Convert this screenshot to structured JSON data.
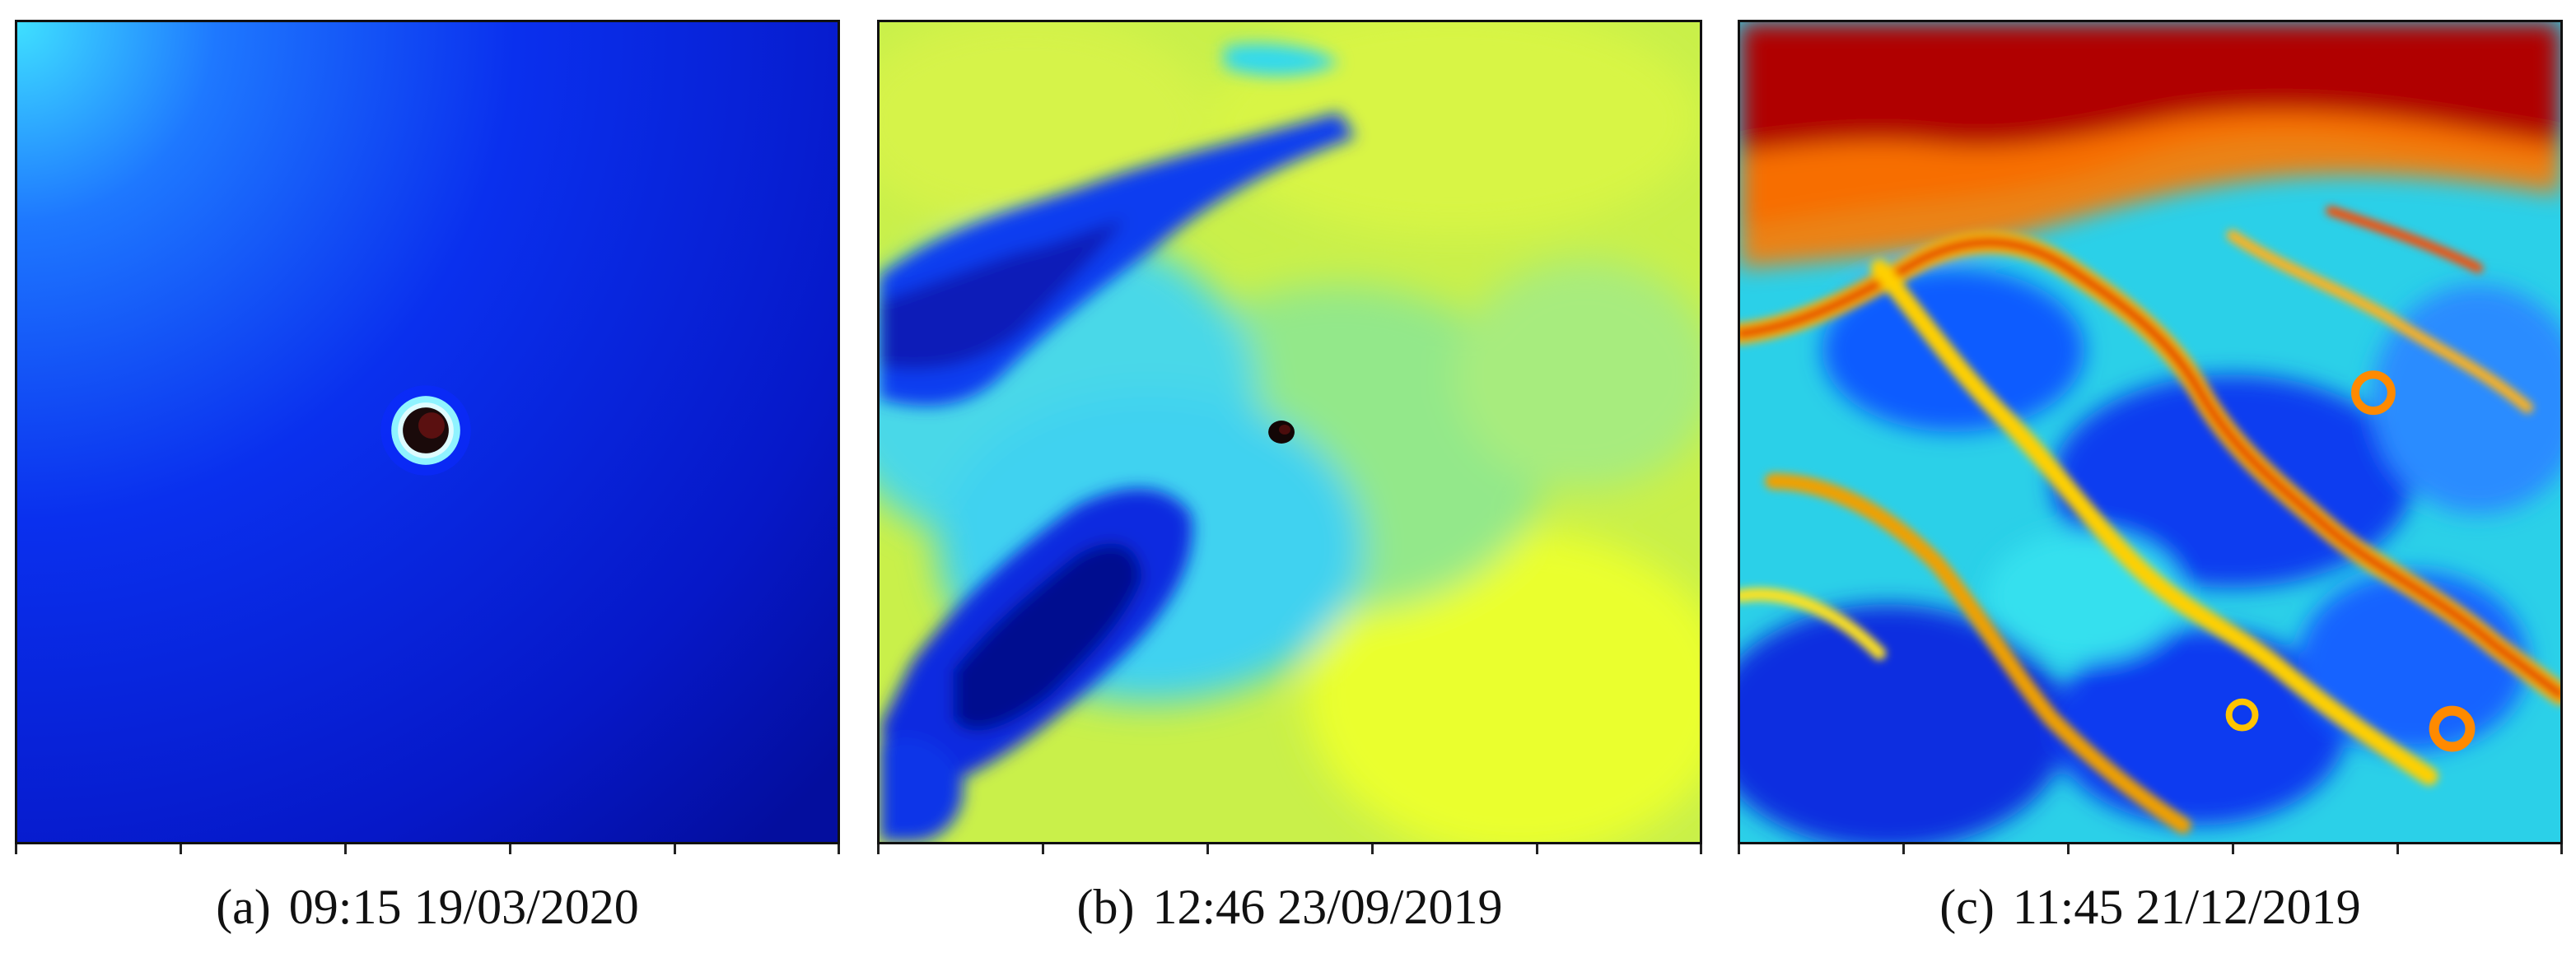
{
  "figure": {
    "panels": [
      {
        "label": "(a)",
        "timestamp": "09:15 19/03/2020",
        "colormap": "jet",
        "dominant_color": "#0a24e0"
      },
      {
        "label": "(b)",
        "timestamp": "12:46 23/09/2019",
        "colormap": "jet",
        "dominant_color": "#c9f04a"
      },
      {
        "label": "(c)",
        "timestamp": "11:45 21/12/2019",
        "colormap": "jet",
        "dominant_color": "#2bd0e8"
      }
    ]
  },
  "colors": {
    "jet_dark_blue": "#00008f",
    "jet_blue": "#0a3cff",
    "jet_cyan": "#00e5ff",
    "jet_green": "#7fff7a",
    "jet_yellow": "#e8ff2a",
    "jet_orange": "#ff7a00",
    "jet_red": "#b00000"
  }
}
